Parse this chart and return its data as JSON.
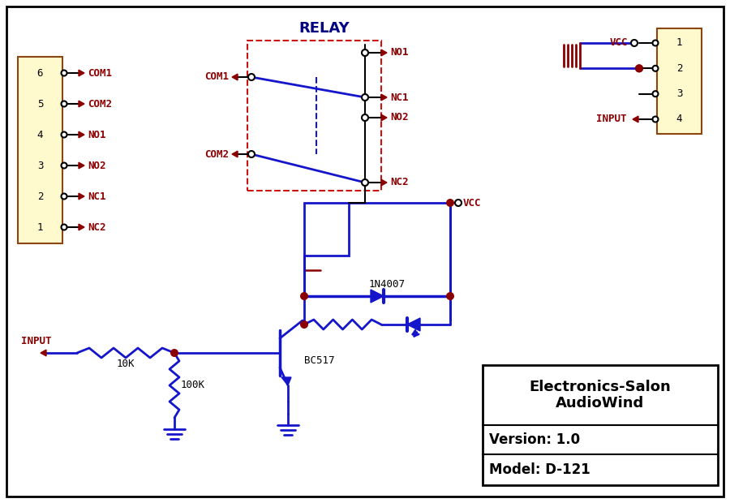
{
  "bg_color": "#ffffff",
  "dark_red": "#8B0000",
  "blue": "#1515CC",
  "yellow_fill": "#FFFACD",
  "relay_label": "RELAY",
  "left_pins": [
    "6",
    "5",
    "4",
    "3",
    "2",
    "1"
  ],
  "left_labels": [
    "COM1",
    "COM2",
    "NO1",
    "NO2",
    "NC1",
    "NC2"
  ],
  "right_pins": [
    "1",
    "2",
    "3",
    "4"
  ],
  "info_line1": "Electronics-Salon",
  "info_line2": "AudioWind",
  "info_version": "Version: 1.0",
  "info_model": "Model: D-121",
  "diode_label": "1N4007",
  "transistor_label": "BC517",
  "r1_label": "10K",
  "r2_label": "100K",
  "vcc_label": "VCC",
  "input_label": "INPUT"
}
